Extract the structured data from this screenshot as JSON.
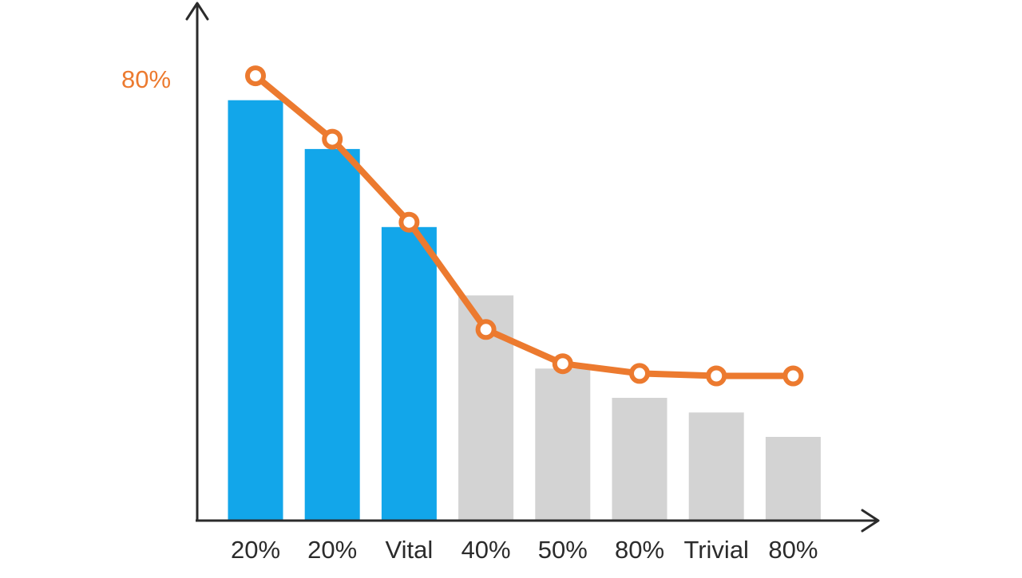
{
  "chart_data": {
    "type": "bar",
    "title": "",
    "xlabel": "",
    "ylabel": "",
    "grid": false,
    "legend": "none",
    "categories": [
      "20%",
      "20%",
      "Vital",
      "40%",
      "50%",
      "80%",
      "Trivial",
      "80%"
    ],
    "ylim": [
      0,
      100
    ],
    "y_annotation": "80%",
    "series": [
      {
        "type": "bar",
        "values": [
          86,
          76,
          60,
          46,
          31,
          25,
          22,
          17
        ],
        "colors": [
          "#12a6ea",
          "#12a6ea",
          "#12a6ea",
          "#d3d3d3",
          "#d3d3d3",
          "#d3d3d3",
          "#d3d3d3",
          "#d3d3d3"
        ]
      },
      {
        "type": "line",
        "color": "#ec7a2f",
        "values": [
          91,
          78,
          61,
          39,
          32,
          30,
          29.5,
          29.5
        ]
      }
    ]
  }
}
